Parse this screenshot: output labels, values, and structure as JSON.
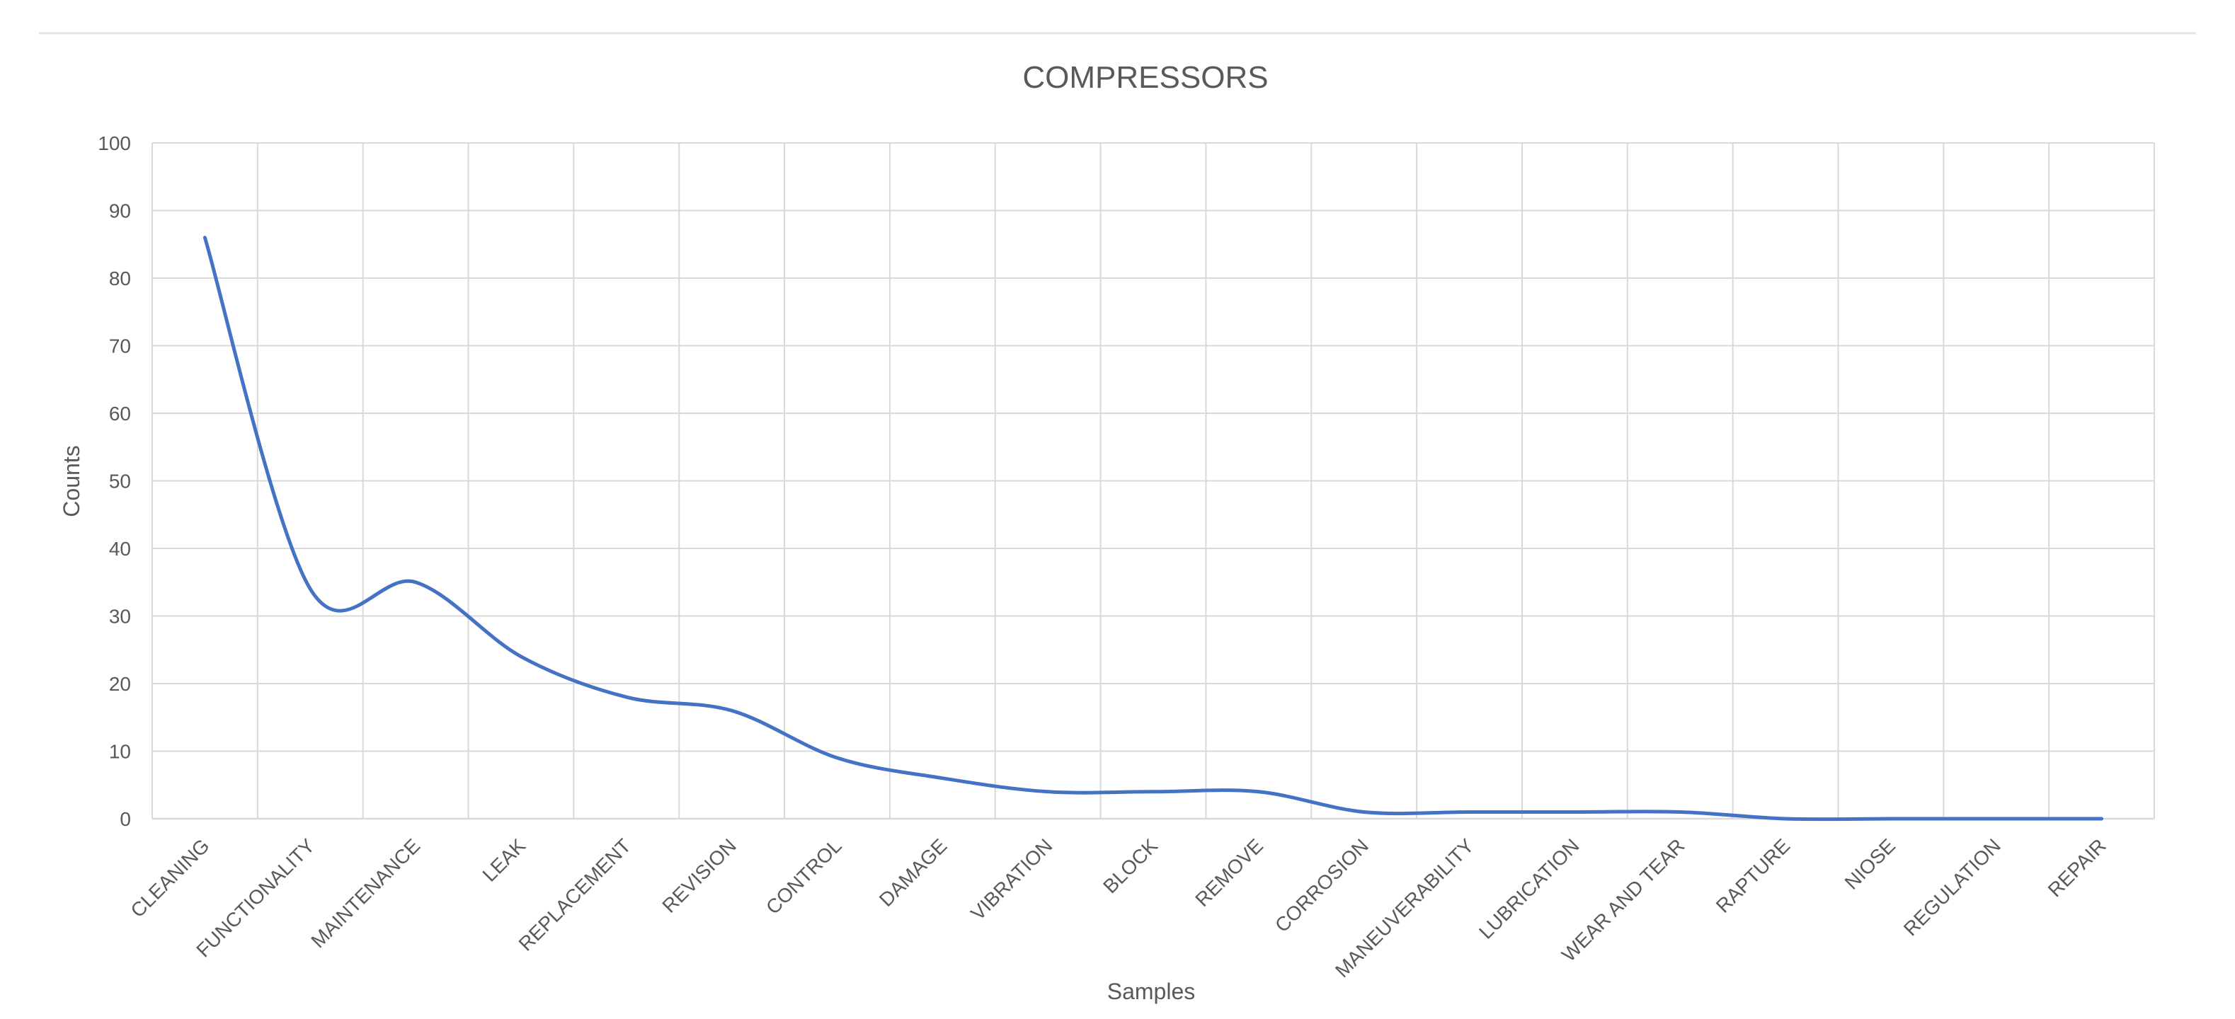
{
  "chart_data": {
    "type": "line",
    "title": "COMPRESSORS",
    "xlabel": "Samples",
    "ylabel": "Counts",
    "categories": [
      "CLEANING",
      "FUNCTIONALITY",
      "MAINTENANCE",
      "LEAK",
      "REPLACEMENT",
      "REVISION",
      "CONTROL",
      "DAMAGE",
      "VIBRATION",
      "BLOCK",
      "REMOVE",
      "CORROSION",
      "MANEUVERABILITY",
      "LUBRICATION",
      "WEAR AND TEAR",
      "RAPTURE",
      "NIOSE",
      "REGULATION",
      "REPAIR"
    ],
    "series": [
      {
        "values": [
          86,
          34,
          35,
          24,
          18,
          16,
          9,
          6,
          4,
          4,
          4,
          1,
          1,
          1,
          1,
          0,
          0,
          0,
          0
        ]
      }
    ],
    "ylim": [
      0,
      100
    ],
    "yticks": [
      "0",
      "10",
      "20",
      "30",
      "40",
      "50",
      "60",
      "70",
      "80",
      "90",
      "100"
    ],
    "line_style": "smoothed",
    "grid": true,
    "legend": "none",
    "colors": {
      "series": "#4472c4",
      "grid": "#d9d9d9",
      "text": "#595959"
    }
  }
}
